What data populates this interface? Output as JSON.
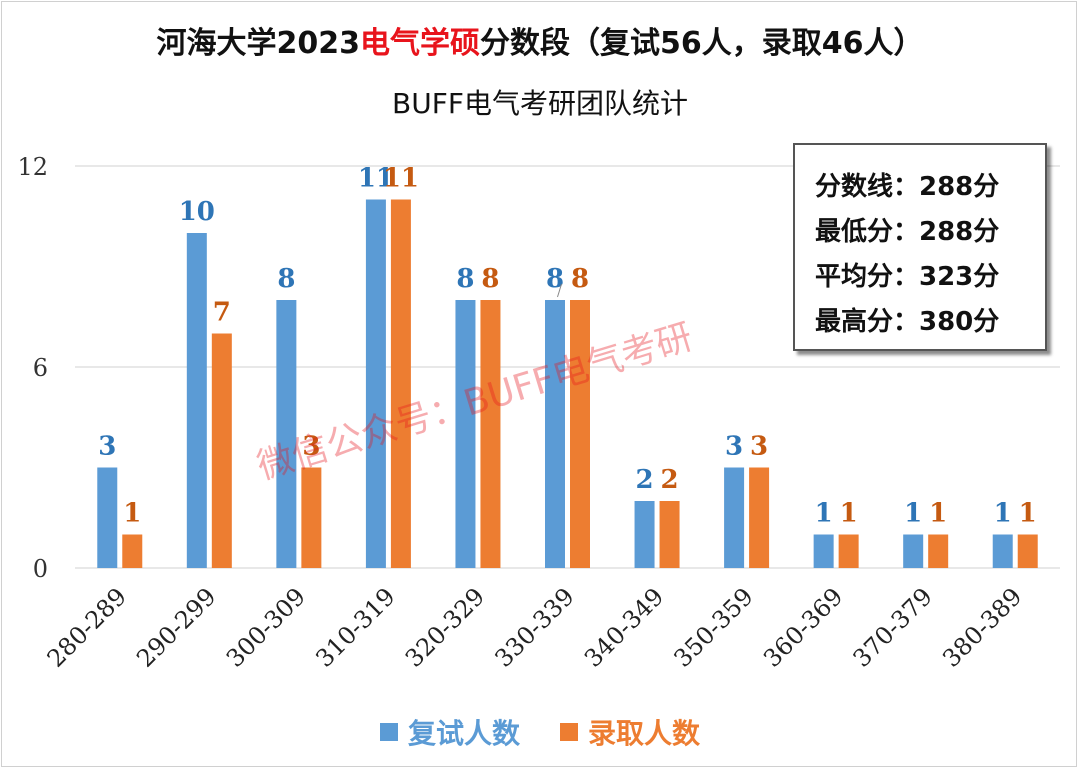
{
  "title": {
    "prefix": "河海大学2023",
    "highlight": "电气学硕",
    "suffix": "分数段（复试56人，录取46人）"
  },
  "subtitle": "BUFF电气考研团队统计",
  "stats_box": [
    "分数线：288分",
    "最低分：288分",
    "平均分：323分",
    "最高分：380分"
  ],
  "watermark": "微信公众号：BUFF电气考研",
  "colors": {
    "series1": "#5b9bd5",
    "series2": "#ed7d31",
    "label1": "#2e75b6",
    "label2": "#c55a11",
    "gridline": "#d9d9d9"
  },
  "chart_data": {
    "type": "bar",
    "title": "河海大学2023电气学硕分数段（复试56人，录取46人）",
    "subtitle": "BUFF电气考研团队统计",
    "categories": [
      "280-289",
      "290-299",
      "300-309",
      "310-319",
      "320-329",
      "330-339",
      "340-349",
      "350-359",
      "360-369",
      "370-379",
      "380-389"
    ],
    "series": [
      {
        "name": "复试人数",
        "values": [
          3,
          10,
          8,
          11,
          8,
          8,
          2,
          3,
          1,
          1,
          1
        ]
      },
      {
        "name": "录取人数",
        "values": [
          1,
          7,
          3,
          11,
          8,
          8,
          2,
          3,
          1,
          1,
          1
        ]
      }
    ],
    "yticks": [
      0,
      6,
      12
    ],
    "ylim": [
      0,
      12
    ],
    "grid": true,
    "legend_position": "bottom"
  }
}
